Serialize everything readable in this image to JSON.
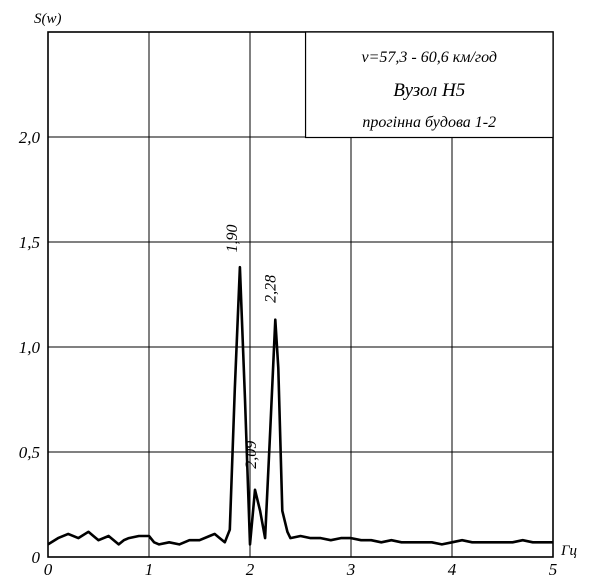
{
  "chart_data": {
    "type": "line",
    "ylabel": "S(w)",
    "xlabel": "Гц",
    "xlim": [
      0,
      5
    ],
    "ylim": [
      0,
      2.5
    ],
    "grid": true,
    "x_ticks": [
      "0",
      "1",
      "2",
      "3",
      "4",
      "5"
    ],
    "y_ticks": [
      {
        "v": 0,
        "label": "0"
      },
      {
        "v": 0.5,
        "label": "0,5"
      },
      {
        "v": 1.0,
        "label": "1,0"
      },
      {
        "v": 1.5,
        "label": "1,5"
      },
      {
        "v": 2.0,
        "label": "2,0"
      }
    ],
    "info_box": {
      "line1": "v=57,3 - 60,6 км/год",
      "line2": "Вузол Н5",
      "line3": "прогінна будова 1-2"
    },
    "annotations": [
      {
        "text": "1,90",
        "x": 1.9,
        "y": 1.45
      },
      {
        "text": "2,09",
        "x": 2.09,
        "y": 0.42
      },
      {
        "text": "2,28",
        "x": 2.28,
        "y": 1.21
      }
    ],
    "series": [
      {
        "x": [
          0.0,
          0.1,
          0.2,
          0.3,
          0.4,
          0.45,
          0.5,
          0.6,
          0.7,
          0.75,
          0.8,
          0.9,
          1.0,
          1.05,
          1.1,
          1.2,
          1.3,
          1.4,
          1.5,
          1.6,
          1.65,
          1.7,
          1.75,
          1.8,
          1.85,
          1.9,
          1.95,
          2.0,
          2.05,
          2.1,
          2.15,
          2.2,
          2.25,
          2.28,
          2.32,
          2.37,
          2.4,
          2.5,
          2.6,
          2.7,
          2.8,
          2.9,
          3.0,
          3.1,
          3.2,
          3.3,
          3.4,
          3.5,
          3.6,
          3.7,
          3.8,
          3.9,
          4.0,
          4.1,
          4.2,
          4.3,
          4.4,
          4.5,
          4.6,
          4.7,
          4.8,
          4.9,
          5.0
        ],
        "y": [
          0.06,
          0.09,
          0.11,
          0.09,
          0.12,
          0.1,
          0.08,
          0.1,
          0.06,
          0.08,
          0.09,
          0.1,
          0.1,
          0.07,
          0.06,
          0.07,
          0.06,
          0.08,
          0.08,
          0.1,
          0.11,
          0.09,
          0.07,
          0.13,
          0.8,
          1.38,
          0.75,
          0.06,
          0.32,
          0.22,
          0.09,
          0.6,
          1.13,
          0.9,
          0.22,
          0.12,
          0.09,
          0.1,
          0.09,
          0.09,
          0.08,
          0.09,
          0.09,
          0.08,
          0.08,
          0.07,
          0.08,
          0.07,
          0.07,
          0.07,
          0.07,
          0.06,
          0.07,
          0.08,
          0.07,
          0.07,
          0.07,
          0.07,
          0.07,
          0.08,
          0.07,
          0.07,
          0.07
        ]
      }
    ]
  }
}
